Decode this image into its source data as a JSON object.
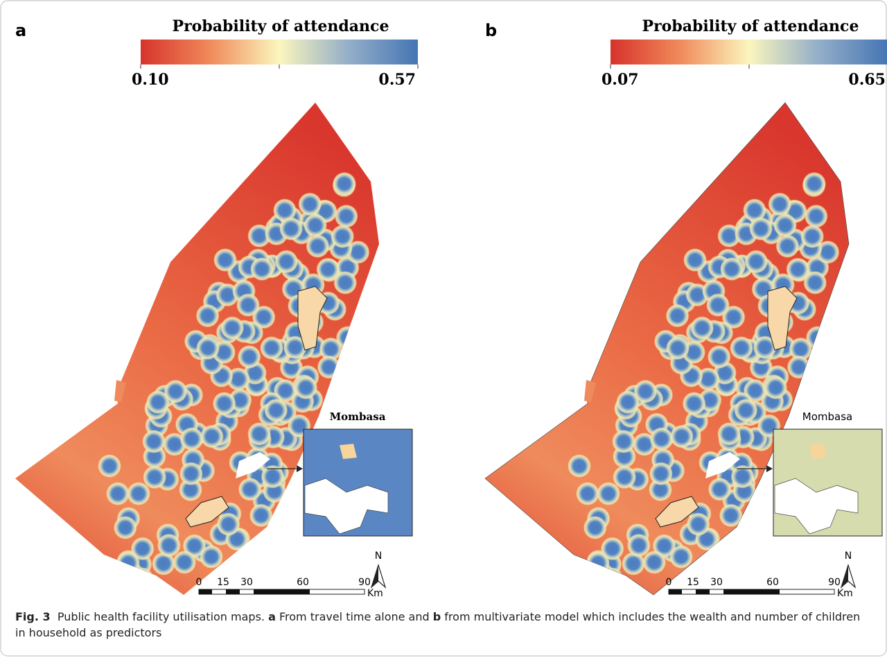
{
  "panels": [
    {
      "label": "a",
      "legend": {
        "title": "Probability of attendance",
        "min": "0.10",
        "max": "0.57"
      },
      "inset": {
        "title": "Mombasa"
      },
      "north": "N",
      "scale": {
        "ticks": [
          "0",
          "15",
          "30",
          "60",
          "90"
        ],
        "unit": "Km"
      }
    },
    {
      "label": "b",
      "legend": {
        "title": "Probability of attendance",
        "min": "0.07",
        "max": "0.65"
      },
      "inset": {
        "title": "Mombasa"
      },
      "north": "N",
      "scale": {
        "ticks": [
          "0",
          "15",
          "30",
          "60",
          "90"
        ],
        "unit": "Km"
      }
    }
  ],
  "caption": {
    "label": "Fig. 3",
    "text": "Public health facility utilisation maps.",
    "part_a_label": "a",
    "part_a": "From travel time alone and",
    "part_b_label": "b",
    "part_b": "from multivariate model which includes the wealth and number of children in household as predictors"
  }
}
